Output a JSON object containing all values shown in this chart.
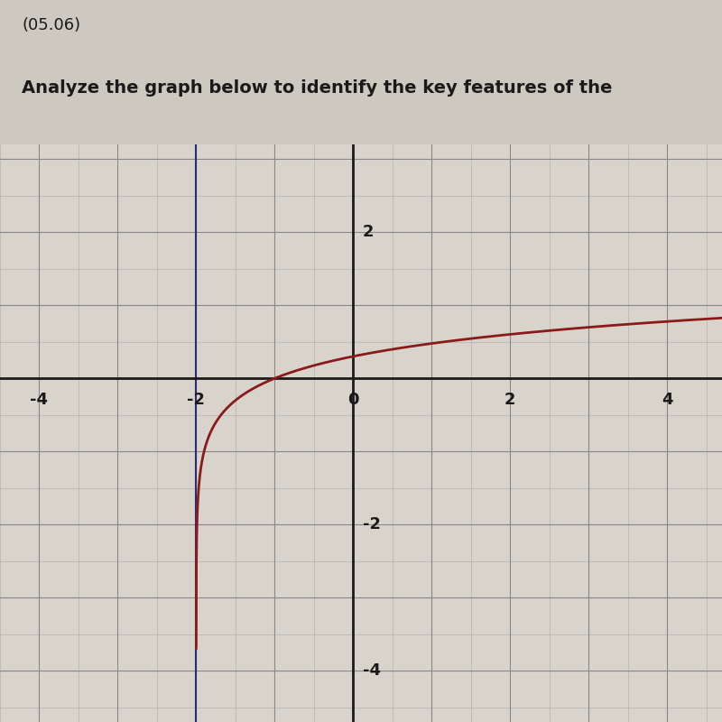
{
  "title_line1": "(05.06)",
  "title_line2": "Analyze the graph below to identify the key features of the",
  "xlim": [
    -4.5,
    4.7
  ],
  "ylim": [
    -4.7,
    3.2
  ],
  "x_ticks_labeled": [
    -4,
    -2,
    0,
    2,
    4
  ],
  "y_ticks_labeled": [
    -4,
    -2,
    2
  ],
  "minor_step": 0.5,
  "asymptote_x": -2,
  "curve_color": "#8B1A1A",
  "asymptote_color": "#2a2a7a",
  "axis_color": "#1a1a1a",
  "grid_major_color": "#888888",
  "grid_minor_color": "#aaaaaa",
  "background_color": "#cdc8c0",
  "plot_bg_color": "#d8d4cc",
  "text_bg_color": "#c8c4bc",
  "curve_linewidth": 2.0,
  "asymptote_linewidth": 1.5,
  "axis_linewidth": 2.0,
  "title1_fontsize": 13,
  "title2_fontsize": 14,
  "tick_fontsize": 13
}
